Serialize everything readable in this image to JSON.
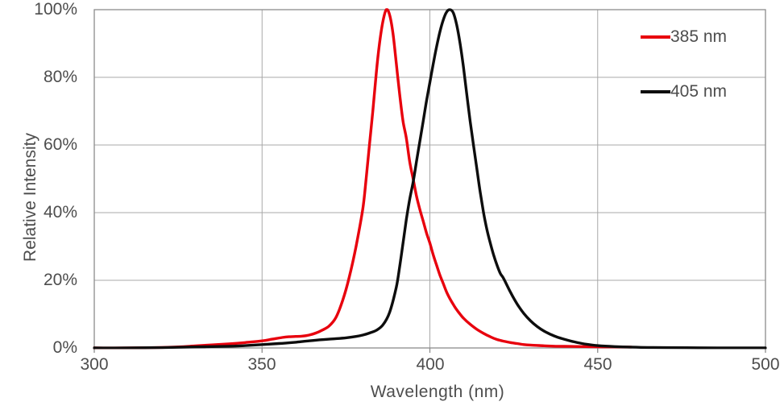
{
  "chart_data": {
    "type": "line",
    "title": "",
    "xlabel": "Wavelength (nm)",
    "ylabel": "Relative Intensity",
    "xlim": [
      300,
      500
    ],
    "ylim": [
      0,
      100
    ],
    "grid": true,
    "x_tick_values": [
      300,
      350,
      400,
      450,
      500
    ],
    "x_tick_labels": [
      "300",
      "350",
      "400",
      "450",
      "500"
    ],
    "y_tick_values": [
      0,
      20,
      40,
      60,
      80,
      100
    ],
    "y_tick_labels": [
      "0%",
      "20%",
      "40%",
      "60%",
      "80%",
      "100%"
    ],
    "colors": {
      "grid": "#a8a8a8",
      "border": "#8c8c8c",
      "series_385": "#e8000d",
      "series_405": "#0d0d0d",
      "text": "#4d4d4d"
    },
    "legend": {
      "position": "top-right",
      "items": [
        {
          "label": "385 nm",
          "color": "#e8000d"
        },
        {
          "label": "405 nm",
          "color": "#0d0d0d"
        }
      ]
    },
    "series": [
      {
        "name": "385 nm",
        "color": "#e8000d",
        "points": [
          [
            300,
            0
          ],
          [
            310,
            0
          ],
          [
            318,
            0.1
          ],
          [
            325,
            0.3
          ],
          [
            330,
            0.6
          ],
          [
            335,
            0.9
          ],
          [
            340,
            1.2
          ],
          [
            345,
            1.6
          ],
          [
            350,
            2.1
          ],
          [
            353,
            2.6
          ],
          [
            356,
            3.1
          ],
          [
            358,
            3.3
          ],
          [
            360,
            3.4
          ],
          [
            362,
            3.5
          ],
          [
            364,
            3.8
          ],
          [
            366,
            4.4
          ],
          [
            368,
            5.3
          ],
          [
            370,
            6.5
          ],
          [
            372,
            9
          ],
          [
            374,
            14
          ],
          [
            376,
            21
          ],
          [
            378,
            30
          ],
          [
            380,
            41
          ],
          [
            381,
            50
          ],
          [
            382,
            60
          ],
          [
            383,
            70
          ],
          [
            384,
            81
          ],
          [
            385,
            90
          ],
          [
            386,
            96.5
          ],
          [
            387,
            100
          ],
          [
            388,
            98.5
          ],
          [
            389,
            93
          ],
          [
            390,
            84
          ],
          [
            391,
            75
          ],
          [
            392,
            67
          ],
          [
            393,
            62
          ],
          [
            394,
            55
          ],
          [
            395,
            50
          ],
          [
            396,
            45
          ],
          [
            397,
            41
          ],
          [
            398,
            37.5
          ],
          [
            399,
            34
          ],
          [
            400,
            31
          ],
          [
            401,
            27.5
          ],
          [
            402,
            24.5
          ],
          [
            403,
            21.5
          ],
          [
            404,
            19
          ],
          [
            405,
            16.5
          ],
          [
            406,
            14.5
          ],
          [
            407,
            12.8
          ],
          [
            408,
            11.3
          ],
          [
            409,
            10
          ],
          [
            410,
            8.8
          ],
          [
            412,
            7
          ],
          [
            414,
            5.5
          ],
          [
            416,
            4.3
          ],
          [
            418,
            3.3
          ],
          [
            420,
            2.5
          ],
          [
            422,
            2
          ],
          [
            424,
            1.6
          ],
          [
            426,
            1.3
          ],
          [
            428,
            1
          ],
          [
            430,
            0.85
          ],
          [
            434,
            0.65
          ],
          [
            438,
            0.5
          ],
          [
            442,
            0.45
          ],
          [
            446,
            0.4
          ],
          [
            450,
            0.35
          ],
          [
            455,
            0.3
          ],
          [
            460,
            0.25
          ]
        ]
      },
      {
        "name": "405 nm",
        "color": "#0d0d0d",
        "points": [
          [
            300,
            0
          ],
          [
            310,
            0
          ],
          [
            320,
            0.1
          ],
          [
            330,
            0.3
          ],
          [
            340,
            0.5
          ],
          [
            345,
            0.7
          ],
          [
            350,
            1
          ],
          [
            355,
            1.3
          ],
          [
            360,
            1.7
          ],
          [
            365,
            2.2
          ],
          [
            370,
            2.6
          ],
          [
            375,
            3
          ],
          [
            378,
            3.4
          ],
          [
            380,
            3.8
          ],
          [
            382,
            4.4
          ],
          [
            384,
            5.2
          ],
          [
            386,
            6.8
          ],
          [
            388,
            10.5
          ],
          [
            390,
            18
          ],
          [
            391,
            24
          ],
          [
            392,
            31
          ],
          [
            393,
            38
          ],
          [
            394,
            44
          ],
          [
            395,
            49
          ],
          [
            396,
            55
          ],
          [
            397,
            61
          ],
          [
            398,
            67
          ],
          [
            399,
            73
          ],
          [
            400,
            78.5
          ],
          [
            401,
            84
          ],
          [
            402,
            89
          ],
          [
            403,
            93.5
          ],
          [
            404,
            97
          ],
          [
            405,
            99.3
          ],
          [
            406,
            100
          ],
          [
            407,
            99
          ],
          [
            408,
            95.5
          ],
          [
            409,
            90
          ],
          [
            410,
            83
          ],
          [
            411,
            75
          ],
          [
            412,
            67
          ],
          [
            413,
            60
          ],
          [
            414,
            53
          ],
          [
            415,
            46
          ],
          [
            416,
            40
          ],
          [
            417,
            35
          ],
          [
            418,
            31
          ],
          [
            419,
            27.5
          ],
          [
            420,
            24.5
          ],
          [
            421,
            22
          ],
          [
            422,
            20.5
          ],
          [
            424,
            16.5
          ],
          [
            426,
            13
          ],
          [
            428,
            10.2
          ],
          [
            430,
            8
          ],
          [
            432,
            6.3
          ],
          [
            434,
            5
          ],
          [
            436,
            4
          ],
          [
            438,
            3.2
          ],
          [
            440,
            2.6
          ],
          [
            443,
            1.8
          ],
          [
            446,
            1.2
          ],
          [
            450,
            0.7
          ],
          [
            455,
            0.4
          ],
          [
            460,
            0.25
          ],
          [
            465,
            0.15
          ],
          [
            470,
            0.1
          ],
          [
            480,
            0.05
          ],
          [
            490,
            0
          ],
          [
            500,
            0
          ]
        ]
      }
    ]
  }
}
